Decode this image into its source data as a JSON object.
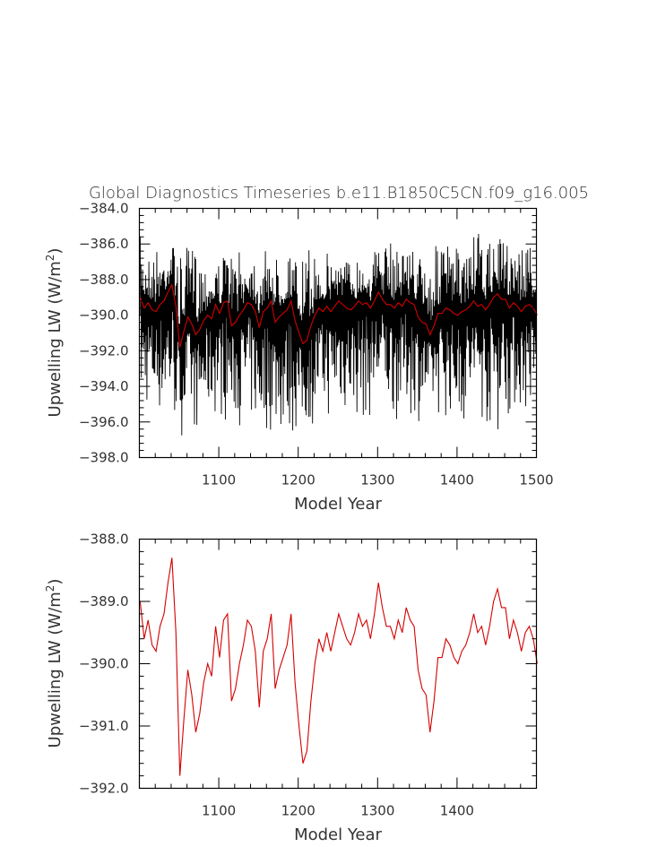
{
  "title": "Global Diagnostics Timeseries b.e11.B1850C5CN.f09_g16.005",
  "colors": {
    "annual_line": "#000000",
    "smooth_line": "#d40000",
    "axes": "#000000",
    "text": "#333333"
  },
  "chart_data": [
    {
      "type": "line",
      "title": "Global Diagnostics Timeseries b.e11.B1850C5CN.f09_g16.005",
      "xlabel": "Model Year",
      "ylabel_text": "Upwelling LW (W/m",
      "ylabel_superscript": "2",
      "ylabel_close": ")",
      "xlim": [
        1000,
        1500
      ],
      "ylim": [
        -398.0,
        -384.0
      ],
      "xticks": [
        1100,
        1200,
        1300,
        1400,
        1500
      ],
      "xtick_labels": [
        "1100",
        "1200",
        "1300",
        "1400",
        "1500"
      ],
      "yticks": [
        -384.0,
        -386.0,
        -388.0,
        -390.0,
        -392.0,
        -394.0,
        -396.0,
        -398.0
      ],
      "ytick_labels": [
        "−384.0",
        "−386.0",
        "−388.0",
        "−390.0",
        "−392.0",
        "−394.0",
        "−396.0",
        "−398.0"
      ],
      "grid": false,
      "series": [
        {
          "color": "#000000",
          "x_range": [
            1001,
            1500
          ],
          "envelope_max": [
            -385.6,
            -386.2,
            -385.8,
            -386.0,
            -385.5,
            -386.5,
            -386.0,
            -385.2,
            -386.4,
            -386.8,
            -386.6,
            -386.0,
            -386.3,
            -386.5,
            -385.9,
            -386.2,
            -386.5,
            -386.3,
            -385.9,
            -386.5,
            -386.0,
            -386.3,
            -386.5,
            -386.1,
            -385.9,
            -386.4,
            -386.3,
            -386.4,
            -386.2,
            -386.0,
            -386.0,
            -385.7,
            -385.4,
            -385.6,
            -385.9,
            -386.4,
            -386.0,
            -385.9,
            -385.5,
            -386.1,
            -386.0,
            -385.6,
            -385.3,
            -385.9,
            -385.6,
            -385.5,
            -385.0,
            -385.7,
            -385.3,
            -385.8
          ],
          "envelope_min": [
            -395.9,
            -395.7,
            -396.0,
            -396.3,
            -396.8,
            -396.9,
            -396.6,
            -396.9,
            -396.5,
            -396.0,
            -396.2,
            -396.3,
            -396.4,
            -396.6,
            -396.8,
            -397.0,
            -397.0,
            -397.1,
            -397.4,
            -397.3,
            -396.8,
            -396.5,
            -396.4,
            -396.2,
            -396.0,
            -396.1,
            -396.0,
            -396.4,
            -396.3,
            -396.1,
            -395.9,
            -396.0,
            -396.3,
            -396.0,
            -395.9,
            -396.2,
            -396.0,
            -395.8,
            -396.1,
            -396.2,
            -396.6,
            -396.3,
            -396.2,
            -396.8,
            -397.2,
            -396.3,
            -395.9,
            -395.8,
            -396.0,
            -395.7
          ],
          "mean_reference": "smooth series"
        },
        {
          "color": "#d40000",
          "x_start": 1001,
          "x_step": 5,
          "values": [
            -389.0,
            -389.6,
            -389.3,
            -389.7,
            -389.8,
            -389.4,
            -389.2,
            -388.7,
            -388.3,
            -389.5,
            -391.8,
            -390.9,
            -390.1,
            -390.5,
            -391.1,
            -390.8,
            -390.3,
            -390.0,
            -390.2,
            -389.4,
            -389.9,
            -389.3,
            -389.2,
            -390.6,
            -390.4,
            -390.0,
            -389.7,
            -389.3,
            -389.4,
            -389.8,
            -390.7,
            -389.8,
            -389.6,
            -389.2,
            -390.4,
            -390.1,
            -389.9,
            -389.7,
            -389.2,
            -390.3,
            -391.0,
            -391.6,
            -391.4,
            -390.6,
            -390.0,
            -389.6,
            -389.8,
            -389.5,
            -389.8,
            -389.5,
            -389.2,
            -389.4,
            -389.6,
            -389.7,
            -389.5,
            -389.2,
            -389.4,
            -389.3,
            -389.6,
            -389.2,
            -388.7,
            -389.1,
            -389.4,
            -389.4,
            -389.6,
            -389.3,
            -389.5,
            -389.1,
            -389.3,
            -389.4,
            -390.1,
            -390.4,
            -390.5,
            -391.1,
            -390.6,
            -389.9,
            -389.9,
            -389.6,
            -389.7,
            -389.9,
            -390.0,
            -389.8,
            -389.7,
            -389.5,
            -389.2,
            -389.5,
            -389.4,
            -389.7,
            -389.4,
            -389.0,
            -388.8,
            -389.1,
            -389.1,
            -389.6,
            -389.3,
            -389.5,
            -389.8,
            -389.5,
            -389.4,
            -389.6,
            -390.0
          ]
        }
      ]
    },
    {
      "type": "line",
      "xlabel": "Model Year",
      "ylabel_text": "Upwelling LW (W/m",
      "ylabel_superscript": "2",
      "ylabel_close": ")",
      "xlim": [
        1000,
        1500
      ],
      "ylim": [
        -392.0,
        -388.0
      ],
      "xticks": [
        1100,
        1200,
        1300,
        1400
      ],
      "xtick_labels": [
        "1100",
        "1200",
        "1300",
        "1400"
      ],
      "yticks": [
        -388.0,
        -389.0,
        -390.0,
        -391.0,
        -392.0
      ],
      "ytick_labels": [
        "−388.0",
        "−389.0",
        "−390.0",
        "−391.0",
        "−392.0"
      ],
      "grid": false,
      "series": [
        {
          "color": "#d40000",
          "same_values_as": "smooth series of upper panel"
        }
      ]
    }
  ]
}
